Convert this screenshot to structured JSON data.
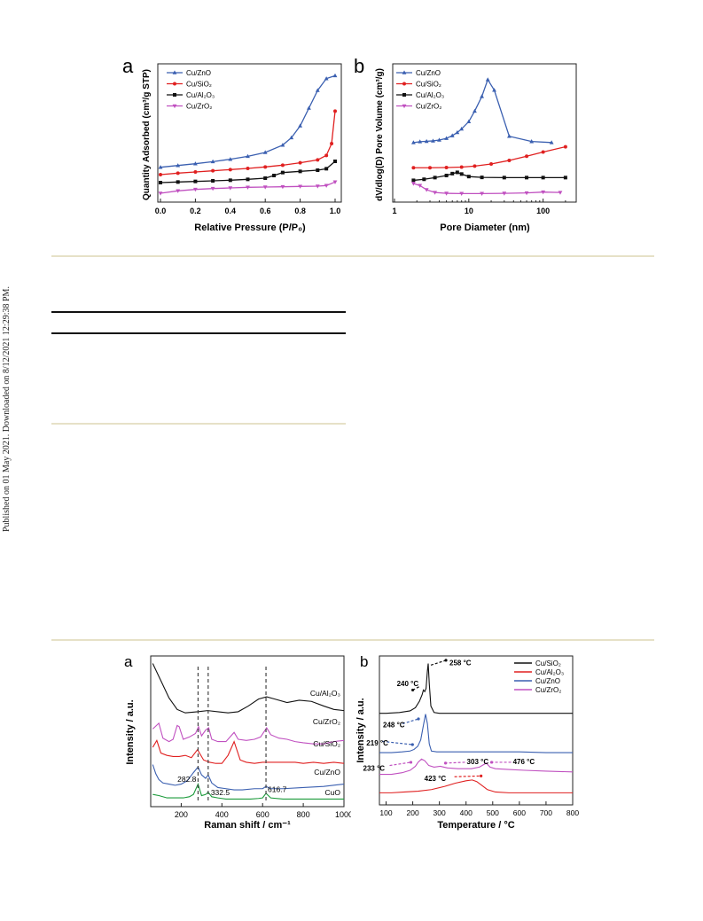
{
  "side_note": "Published on 01 May 2021. Downloaded on 8/12/2021 12:29:38 PM.",
  "figure_top": {
    "a": {
      "label": "a",
      "xlabel": "Relative Pressure (P/P₀)",
      "ylabel": "Quantity Adsorbed (cm³/g STP)",
      "xticks": [
        "0.0",
        "0.2",
        "0.4",
        "0.6",
        "0.8",
        "1.0"
      ],
      "legend": [
        "Cu/ZnO",
        "Cu/SiO₂",
        "Cu/Al₂O₃",
        "Cu/ZrO₂"
      ]
    },
    "b": {
      "label": "b",
      "xlabel": "Pore Diameter (nm)",
      "ylabel": "dV/dlog(D) Pore Volume (cm³/g)",
      "xticks": [
        "1",
        "10",
        "100"
      ],
      "legend": [
        "Cu/ZnO",
        "Cu/SiO₂",
        "Cu/Al₂O₃",
        "Cu/ZrO₂"
      ]
    }
  },
  "figure_bottom": {
    "a": {
      "label": "a",
      "xlabel": "Raman shift / cm⁻¹",
      "ylabel": "Intensity / a.u.",
      "xticks": [
        "200",
        "400",
        "600",
        "800",
        "1000"
      ],
      "trace_labels": [
        "Cu/Al₂O₃",
        "Cu/ZrO₂",
        "Cu/SiO₂",
        "Cu/ZnO",
        "CuO"
      ],
      "peak_labels": [
        "282.8",
        "332.5",
        "616.7"
      ]
    },
    "b": {
      "label": "b",
      "xlabel": "Temperature / °C",
      "ylabel": "Intensity / a.u.",
      "xticks": [
        "100",
        "200",
        "300",
        "400",
        "500",
        "600",
        "700",
        "800"
      ],
      "legend": [
        "Cu/SiO₂",
        "Cu/Al₂O₃",
        "Cu/ZnO",
        "Cu/ZrO₂"
      ],
      "annotations": [
        "258 °C",
        "240 °C",
        "248 °C",
        "219 °C",
        "303 °C",
        "476 °C",
        "233 °C",
        "423 °C"
      ]
    }
  },
  "chart_data": [
    {
      "type": "line",
      "panel": "top-a",
      "xlabel": "Relative Pressure (P/P₀)",
      "ylabel": "Quantity Adsorbed (cm³/g STP)",
      "xlim": [
        0,
        1.0
      ],
      "series": [
        {
          "name": "Cu/ZnO",
          "color": "#3a5fb0",
          "x": [
            0.0,
            0.1,
            0.2,
            0.3,
            0.4,
            0.5,
            0.6,
            0.7,
            0.75,
            0.8,
            0.85,
            0.9,
            0.95,
            1.0
          ],
          "y": [
            10,
            10.6,
            11.2,
            11.9,
            12.7,
            13.7,
            15.0,
            17.5,
            20,
            24,
            30,
            36,
            40,
            41
          ]
        },
        {
          "name": "Cu/SiO₂",
          "color": "#e02020",
          "x": [
            0.0,
            0.1,
            0.2,
            0.3,
            0.4,
            0.5,
            0.6,
            0.7,
            0.8,
            0.9,
            0.95,
            0.98,
            1.0
          ],
          "y": [
            7.5,
            8.0,
            8.4,
            8.8,
            9.2,
            9.6,
            10.1,
            10.7,
            11.5,
            12.5,
            14,
            18,
            29
          ]
        },
        {
          "name": "Cu/Al₂O₃",
          "color": "#111111",
          "x": [
            0.0,
            0.1,
            0.2,
            0.3,
            0.4,
            0.5,
            0.6,
            0.65,
            0.7,
            0.8,
            0.9,
            0.95,
            1.0
          ],
          "y": [
            4.8,
            5.0,
            5.2,
            5.4,
            5.6,
            5.9,
            6.3,
            7.2,
            8.2,
            8.6,
            9.0,
            9.5,
            12
          ]
        },
        {
          "name": "Cu/ZrO₂",
          "color": "#c050c0",
          "x": [
            0.0,
            0.1,
            0.2,
            0.3,
            0.4,
            0.5,
            0.6,
            0.7,
            0.8,
            0.9,
            0.95,
            1.0
          ],
          "y": [
            1.2,
            2.0,
            2.5,
            2.8,
            3.0,
            3.2,
            3.3,
            3.4,
            3.5,
            3.6,
            3.8,
            5.0
          ]
        }
      ]
    },
    {
      "type": "line",
      "panel": "top-b",
      "xlabel": "Pore Diameter (nm)",
      "ylabel": "dV/dlog(D) Pore Volume (cm³/g)",
      "xscale": "log",
      "xlim": [
        1,
        250
      ],
      "series": [
        {
          "name": "Cu/ZnO",
          "color": "#3a5fb0",
          "x": [
            1.8,
            2.2,
            2.7,
            3.3,
            4,
            5,
            6,
            7,
            8,
            10,
            12,
            15,
            18,
            22,
            35,
            70,
            130
          ],
          "y": [
            25,
            25.4,
            25.6,
            25.8,
            26.2,
            27.0,
            28.3,
            29.8,
            31.5,
            35,
            40,
            47,
            55,
            50,
            28,
            25.5,
            25
          ]
        },
        {
          "name": "Cu/SiO₂",
          "color": "#e02020",
          "x": [
            1.8,
            3,
            5,
            8,
            12,
            20,
            35,
            60,
            100,
            200
          ],
          "y": [
            13,
            13,
            13.1,
            13.3,
            13.8,
            14.8,
            16.5,
            18.5,
            20.5,
            23
          ]
        },
        {
          "name": "Cu/Al₂O₃",
          "color": "#111111",
          "x": [
            1.8,
            2.5,
            3.5,
            5,
            6,
            7,
            8,
            10,
            15,
            30,
            60,
            100,
            200
          ],
          "y": [
            7,
            7.5,
            8.3,
            9.3,
            10.2,
            10.8,
            10,
            8.8,
            8.4,
            8.3,
            8.3,
            8.3,
            8.3
          ]
        },
        {
          "name": "Cu/ZrO₂",
          "color": "#c050c0",
          "x": [
            1.8,
            2.2,
            2.7,
            3.5,
            5,
            8,
            15,
            30,
            60,
            100,
            170
          ],
          "y": [
            5.5,
            4.5,
            2.5,
            1.2,
            0.8,
            0.7,
            0.7,
            0.8,
            1.0,
            1.4,
            1.2
          ]
        }
      ]
    },
    {
      "type": "line",
      "panel": "bottom-a",
      "xlabel": "Raman shift / cm⁻¹",
      "ylabel": "Intensity / a.u.",
      "xlim": [
        50,
        1000
      ],
      "series": [
        {
          "name": "Cu/Al₂O₃",
          "color": "#111111",
          "x": [
            60,
            100,
            140,
            180,
            220,
            280,
            330,
            380,
            430,
            480,
            530,
            580,
            620,
            660,
            720,
            780,
            840,
            900,
            950,
            1000
          ],
          "y": [
            12,
            10.5,
            9,
            8,
            7.7,
            7.8,
            7.9,
            7.8,
            7.7,
            7.8,
            8.3,
            8.9,
            9.1,
            8.9,
            8.6,
            8.8,
            8.7,
            8.3,
            8.0,
            7.9
          ]
        },
        {
          "name": "Cu/ZrO₂",
          "color": "#c050c0",
          "x": [
            60,
            90,
            110,
            140,
            160,
            180,
            190,
            210,
            240,
            270,
            285,
            300,
            320,
            335,
            350,
            380,
            420,
            460,
            480,
            520,
            560,
            590,
            620,
            640,
            680,
            720,
            760,
            800,
            850,
            900,
            950,
            1000
          ],
          "y": [
            6.3,
            6.8,
            5.5,
            5.2,
            5.4,
            6.6,
            6.5,
            5.4,
            5.6,
            5.9,
            6.5,
            5.7,
            6.2,
            6.4,
            5.4,
            5.2,
            5.2,
            6.0,
            5.4,
            5.3,
            5.4,
            5.6,
            6.4,
            5.8,
            5.5,
            5.4,
            5.2,
            5.1,
            5.0,
            5.0,
            5.2,
            5.3
          ]
        },
        {
          "name": "Cu/SiO₂",
          "color": "#e02020",
          "x": [
            60,
            80,
            100,
            130,
            160,
            190,
            220,
            250,
            280,
            310,
            340,
            370,
            400,
            430,
            460,
            490,
            520,
            560,
            600,
            640,
            680,
            720,
            760,
            800,
            850,
            900,
            950,
            1000
          ],
          "y": [
            4.7,
            5.3,
            4.2,
            4.0,
            3.9,
            3.9,
            4.0,
            3.8,
            4.5,
            3.6,
            3.4,
            3.3,
            3.3,
            4.0,
            5.2,
            3.6,
            3.4,
            3.3,
            3.4,
            3.4,
            3.4,
            3.4,
            3.4,
            3.3,
            3.4,
            3.3,
            3.4,
            3.3
          ]
        },
        {
          "name": "Cu/ZnO",
          "color": "#3a5fb0",
          "x": [
            60,
            75,
            90,
            110,
            140,
            170,
            200,
            230,
            260,
            282.8,
            300,
            320,
            332.5,
            350,
            380,
            420,
            460,
            500,
            560,
            600,
            616.7,
            640,
            700,
            800,
            900,
            1000
          ],
          "y": [
            3.2,
            2.4,
            1.9,
            1.6,
            1.5,
            1.4,
            1.5,
            1.8,
            2.5,
            3.0,
            2.3,
            2.0,
            2.3,
            1.6,
            1.2,
            1.1,
            1.0,
            1.0,
            1.1,
            1.1,
            1.3,
            1.1,
            1.1,
            1.2,
            1.3,
            1.5
          ]
        },
        {
          "name": "CuO",
          "color": "#1a9a3a",
          "x": [
            60,
            90,
            130,
            170,
            210,
            240,
            260,
            282.8,
            300,
            320,
            332.5,
            350,
            380,
            420,
            480,
            540,
            580,
            600,
            616.7,
            640,
            700,
            800,
            900,
            1000
          ],
          "y": [
            0.6,
            0.5,
            0.3,
            0.3,
            0.3,
            0.4,
            0.6,
            1.5,
            0.5,
            0.6,
            0.8,
            0.4,
            0.3,
            0.2,
            0.2,
            0.2,
            0.25,
            0.3,
            0.7,
            0.3,
            0.2,
            0.2,
            0.2,
            0.2
          ]
        }
      ]
    },
    {
      "type": "line",
      "panel": "bottom-b",
      "xlabel": "Temperature / °C",
      "ylabel": "Intensity / a.u.",
      "xlim": [
        75,
        800
      ],
      "series": [
        {
          "name": "Cu/SiO₂",
          "color": "#111111",
          "x": [
            75,
            100,
            150,
            190,
            210,
            225,
            235,
            240,
            245,
            250,
            255,
            258,
            262,
            268,
            280,
            300,
            400,
            500,
            600,
            700,
            800
          ],
          "y": [
            10.3,
            10.3,
            10.4,
            10.6,
            11.0,
            11.8,
            12.6,
            13.2,
            13.0,
            13.4,
            15.6,
            16.5,
            14.0,
            11.2,
            10.4,
            10.3,
            10.3,
            10.3,
            10.3,
            10.3,
            10.3
          ]
        },
        {
          "name": "Cu/ZnO",
          "color": "#3a5fb0",
          "x": [
            75,
            120,
            160,
            190,
            205,
            219,
            230,
            240,
            248,
            255,
            262,
            270,
            290,
            320,
            400,
            500,
            600,
            700,
            800
          ],
          "y": [
            5.4,
            5.4,
            5.5,
            5.6,
            5.8,
            6.2,
            7.0,
            8.8,
            10.2,
            9.0,
            6.5,
            5.6,
            5.5,
            5.5,
            5.5,
            5.5,
            5.5,
            5.4,
            5.4
          ]
        },
        {
          "name": "Cu/ZrO₂",
          "color": "#c050c0",
          "x": [
            75,
            120,
            160,
            190,
            210,
            220,
            233,
            245,
            260,
            280,
            303,
            330,
            370,
            420,
            450,
            476,
            490,
            510,
            560,
            620,
            700,
            800
          ],
          "y": [
            2.7,
            2.7,
            2.9,
            3.2,
            3.7,
            4.2,
            4.6,
            4.4,
            3.8,
            3.6,
            3.7,
            3.5,
            3.4,
            3.4,
            3.6,
            4.1,
            3.6,
            3.4,
            3.3,
            3.2,
            3.1,
            3.0
          ]
        },
        {
          "name": "Cu/Al₂O₃",
          "color": "#e02020",
          "x": [
            75,
            120,
            170,
            220,
            270,
            320,
            360,
            400,
            423,
            440,
            460,
            480,
            510,
            560,
            620,
            700,
            800
          ],
          "y": [
            0.4,
            0.4,
            0.5,
            0.6,
            0.8,
            1.2,
            1.6,
            1.9,
            2.0,
            1.8,
            1.3,
            0.8,
            0.5,
            0.4,
            0.4,
            0.4,
            0.4
          ]
        }
      ]
    }
  ]
}
